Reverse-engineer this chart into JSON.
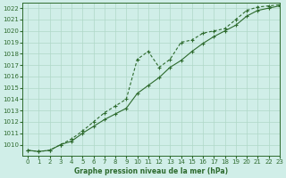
{
  "title": "Graphe pression niveau de la mer (hPa)",
  "bg_color": "#d0eee8",
  "grid_color": "#b0d8c8",
  "line_color": "#2d6a2d",
  "xlim": [
    -0.5,
    23
  ],
  "ylim": [
    1009.0,
    1022.5
  ],
  "yticks": [
    1010,
    1011,
    1012,
    1013,
    1014,
    1015,
    1016,
    1017,
    1018,
    1019,
    1020,
    1021,
    1022
  ],
  "xticks": [
    0,
    1,
    2,
    3,
    4,
    5,
    6,
    7,
    8,
    9,
    10,
    11,
    12,
    13,
    14,
    15,
    16,
    17,
    18,
    19,
    20,
    21,
    22,
    23
  ],
  "line1_x": [
    0,
    1,
    2,
    3,
    4,
    5,
    6,
    7,
    8,
    9,
    10,
    11,
    12,
    13,
    14,
    15,
    16,
    17,
    18,
    19,
    20,
    21,
    22,
    23
  ],
  "line1_y": [
    1009.5,
    1009.4,
    1009.5,
    1010.0,
    1010.3,
    1011.0,
    1011.6,
    1012.2,
    1012.7,
    1013.2,
    1014.5,
    1015.2,
    1015.9,
    1016.8,
    1017.4,
    1018.2,
    1018.9,
    1019.5,
    1020.0,
    1020.5,
    1021.3,
    1021.8,
    1022.0,
    1022.2
  ],
  "line2_x": [
    0,
    1,
    2,
    3,
    4,
    5,
    6,
    7,
    8,
    9,
    10,
    11,
    12,
    13,
    14,
    15,
    16,
    17,
    18,
    19,
    20,
    21,
    22,
    23
  ],
  "line2_y": [
    1009.5,
    1009.4,
    1009.5,
    1010.0,
    1010.5,
    1011.2,
    1012.0,
    1012.8,
    1013.4,
    1014.0,
    1017.5,
    1018.2,
    1016.8,
    1017.5,
    1019.0,
    1019.2,
    1019.8,
    1020.0,
    1020.2,
    1021.0,
    1021.8,
    1022.1,
    1022.2,
    1022.3
  ]
}
